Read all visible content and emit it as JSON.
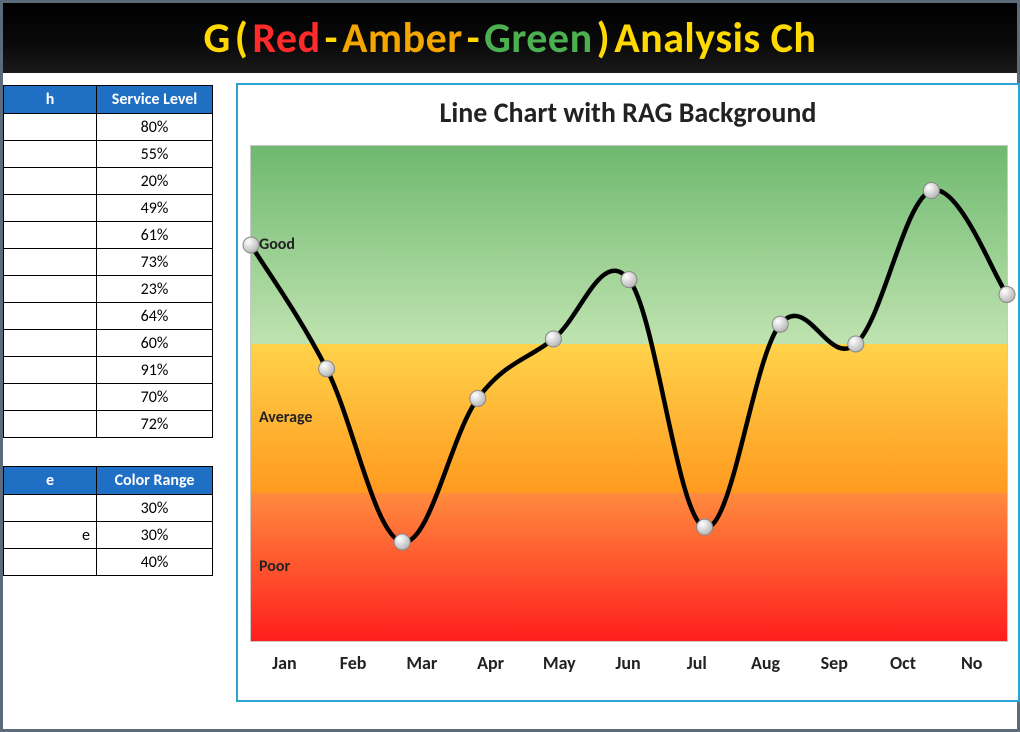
{
  "title": {
    "segments": [
      {
        "text": "G ",
        "color": "#ffd900"
      },
      {
        "text": "(",
        "color": "#ffd900"
      },
      {
        "text": "Red",
        "color": "#ff2a2a"
      },
      {
        "text": "-",
        "color": "#ffd900"
      },
      {
        "text": "Amber",
        "color": "#f3a500"
      },
      {
        "text": "-",
        "color": "#ffd900"
      },
      {
        "text": "Green",
        "color": "#4caf50"
      },
      {
        "text": ")",
        "color": "#ffd900"
      },
      {
        "text": " Analysis Ch",
        "color": "#ffd900"
      }
    ],
    "background": "#000000",
    "fontsize": 42,
    "fontweight": 700
  },
  "data_table": {
    "columns": [
      "h",
      "Service Level"
    ],
    "header_bg": "#1f6fc4",
    "header_color": "#ffffff",
    "border_color": "#000000",
    "rows": [
      [
        "",
        "80%"
      ],
      [
        "",
        "55%"
      ],
      [
        "",
        "20%"
      ],
      [
        "",
        "49%"
      ],
      [
        "",
        "61%"
      ],
      [
        "",
        "73%"
      ],
      [
        "",
        "23%"
      ],
      [
        "",
        "64%"
      ],
      [
        "",
        "60%"
      ],
      [
        "",
        "91%"
      ],
      [
        "",
        "70%"
      ],
      [
        "",
        "72%"
      ]
    ]
  },
  "range_table": {
    "columns": [
      "e",
      "Color Range"
    ],
    "header_bg": "#1f6fc4",
    "header_color": "#ffffff",
    "border_color": "#000000",
    "rows": [
      [
        "",
        "30%"
      ],
      [
        "e",
        "30%"
      ],
      [
        "",
        "40%"
      ]
    ]
  },
  "chart": {
    "type": "line",
    "title": "Line Chart with RAG Background",
    "title_fontsize": 28,
    "title_fontweight": 700,
    "border_color": "#2aa4d4",
    "background": "#ffffff",
    "plot_border_color": "#c9c9c9",
    "ylim": [
      0,
      100
    ],
    "bands": [
      {
        "label": "Poor",
        "from": 0,
        "to": 30,
        "top_color": "#ff8b3e",
        "bottom_color": "#ff1e1e"
      },
      {
        "label": "Average",
        "from": 30,
        "to": 60,
        "top_color": "#ffd24a",
        "bottom_color": "#ff9a1f"
      },
      {
        "label": "Good",
        "from": 60,
        "to": 100,
        "top_color": "#6fb96f",
        "bottom_color": "#bfe3b0"
      }
    ],
    "band_label_fontsize": 16,
    "band_label_fontweight": 700,
    "categories": [
      "Jan",
      "Feb",
      "Mar",
      "Apr",
      "May",
      "Jun",
      "Jul",
      "Aug",
      "Sep",
      "Oct",
      "No"
    ],
    "x_fontsize": 18,
    "x_fontweight": 700,
    "values": [
      80,
      55,
      20,
      49,
      61,
      73,
      23,
      64,
      60,
      91,
      70
    ],
    "line_color": "#000000",
    "line_width": 4.5,
    "marker_radius": 8,
    "marker_fill_highlight": "#ffffff",
    "marker_fill_shade": "#b8b8b8",
    "marker_stroke": "#888888",
    "smooth": true
  }
}
